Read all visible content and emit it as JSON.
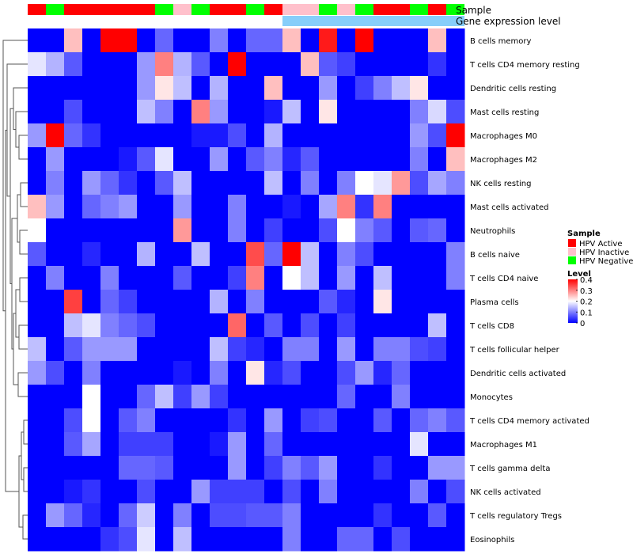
{
  "chart_data": {
    "type": "heatmap",
    "title": "",
    "annotation_tracks": [
      {
        "name": "Sample",
        "values": [
          "HPV Active",
          "HPV Negative",
          "HPV Active",
          "HPV Active",
          "HPV Active",
          "HPV Active",
          "HPV Active",
          "HPV Negative",
          "HPV Inactive",
          "HPV Negative",
          "HPV Active",
          "HPV Active",
          "HPV Negative",
          "HPV Active",
          "HPV Inactive",
          "HPV Inactive",
          "HPV Negative",
          "HPV Inactive",
          "HPV Negative",
          "HPV Active",
          "HPV Active",
          "HPV Negative",
          "HPV Active",
          "HPV Negative"
        ]
      },
      {
        "name": "Gene expression level",
        "values": [
          "low",
          "low",
          "low",
          "low",
          "low",
          "low",
          "low",
          "low",
          "low",
          "low",
          "low",
          "low",
          "low",
          "low",
          "high",
          "high",
          "high",
          "high",
          "high",
          "high",
          "high",
          "high",
          "high",
          "high"
        ]
      }
    ],
    "rows": [
      "B cells memory",
      "T cells CD4 memory resting",
      "Dendritic cells resting",
      "Mast cells resting",
      "Macrophages M0",
      "Macrophages M2",
      "NK cells resting",
      "Mast cells activated",
      "Neutrophils",
      "B cells naive",
      "T cells CD4 naive",
      "Plasma cells",
      "T cells CD8",
      "T cells follicular helper",
      "Dendritic cells activated",
      "Monocytes",
      "T cells CD4 memory activated",
      "Macrophages M1",
      "T cells gamma delta",
      "NK cells activated",
      "T cells regulatory  Tregs",
      "Eosinophils"
    ],
    "values": [
      [
        0,
        0,
        0.25,
        0,
        0.4,
        0.4,
        0,
        0.08,
        0,
        0,
        0.1,
        0,
        0.08,
        0.08,
        0.25,
        0,
        0.38,
        0,
        0.4,
        0,
        0,
        0,
        0.25,
        0
      ],
      [
        0.18,
        0.14,
        0.07,
        0,
        0,
        0,
        0.12,
        0.3,
        0.14,
        0.07,
        0,
        0.4,
        0,
        0,
        0,
        0.25,
        0.07,
        0.05,
        0,
        0,
        0,
        0,
        0.04,
        0
      ],
      [
        0,
        0,
        0,
        0,
        0,
        0,
        0.12,
        0.22,
        0.15,
        0,
        0.14,
        0,
        0,
        0.25,
        0,
        0,
        0.12,
        0,
        0.05,
        0.1,
        0.15,
        0.22,
        0,
        0
      ],
      [
        0,
        0,
        0.06,
        0,
        0,
        0,
        0.15,
        0.1,
        0,
        0.3,
        0.12,
        0,
        0,
        0.02,
        0.15,
        0,
        0.22,
        0,
        0,
        0,
        0,
        0.1,
        0.17,
        0.06
      ],
      [
        0.12,
        0.4,
        0.08,
        0.04,
        0,
        0,
        0,
        0,
        0,
        0.02,
        0.02,
        0.06,
        0,
        0.14,
        0,
        0,
        0,
        0,
        0,
        0,
        0,
        0.12,
        0.06,
        0.4
      ],
      [
        0,
        0.12,
        0,
        0,
        0,
        0.02,
        0.07,
        0.18,
        0,
        0,
        0.12,
        0,
        0.07,
        0.1,
        0.03,
        0.07,
        0,
        0,
        0,
        0,
        0,
        0.1,
        0,
        0.25
      ],
      [
        0,
        0.1,
        0,
        0.12,
        0.08,
        0.04,
        0,
        0.07,
        0.15,
        0,
        0,
        0,
        0,
        0.15,
        0,
        0.1,
        0,
        0.1,
        0.2,
        0.18,
        0.28,
        0.06,
        0.13,
        0.1
      ],
      [
        0.25,
        0.12,
        0,
        0.08,
        0.1,
        0.12,
        0,
        0,
        0.12,
        0,
        0,
        0.1,
        0,
        0,
        0.02,
        0,
        0.13,
        0.3,
        0.04,
        0.3,
        0,
        0,
        0,
        0
      ],
      [
        0.2,
        0,
        0,
        0,
        0,
        0,
        0,
        0,
        0.28,
        0,
        0,
        0.1,
        0,
        0.05,
        0,
        0,
        0.06,
        0.2,
        0.1,
        0.07,
        0,
        0.07,
        0.08,
        0
      ],
      [
        0.07,
        0,
        0,
        0.03,
        0,
        0,
        0.14,
        0,
        0,
        0.15,
        0,
        0,
        0.34,
        0.08,
        0.4,
        0.15,
        0,
        0.1,
        0.06,
        0,
        0,
        0,
        0,
        0.1
      ],
      [
        0,
        0.1,
        0,
        0,
        0.1,
        0,
        0,
        0,
        0.07,
        0,
        0,
        0.05,
        0.3,
        0,
        0.2,
        0.15,
        0,
        0.12,
        0,
        0.15,
        0,
        0,
        0,
        0.1
      ],
      [
        0,
        0,
        0.35,
        0,
        0.08,
        0.05,
        0,
        0,
        0,
        0,
        0.14,
        0,
        0.1,
        0,
        0,
        0,
        0.07,
        0.03,
        0,
        0.22,
        0,
        0,
        0,
        0
      ],
      [
        0,
        0,
        0.15,
        0.18,
        0.1,
        0.08,
        0.06,
        0,
        0,
        0,
        0,
        0.32,
        0,
        0.07,
        0,
        0.06,
        0,
        0.05,
        0,
        0,
        0,
        0,
        0.15,
        0
      ],
      [
        0.15,
        0,
        0.07,
        0.12,
        0.12,
        0.12,
        0,
        0,
        0,
        0,
        0.15,
        0.05,
        0.03,
        0,
        0.1,
        0.1,
        0,
        0.12,
        0,
        0.1,
        0.1,
        0.06,
        0.05,
        0
      ],
      [
        0.12,
        0.06,
        0,
        0.1,
        0,
        0,
        0,
        0,
        0.02,
        0,
        0.1,
        0,
        0.22,
        0.03,
        0.06,
        0,
        0,
        0.06,
        0.12,
        0.03,
        0.08,
        0,
        0,
        0
      ],
      [
        0,
        0,
        0,
        0.2,
        0,
        0,
        0.08,
        0.15,
        0.05,
        0.12,
        0.05,
        0,
        0,
        0,
        0,
        0,
        0,
        0.08,
        0,
        0,
        0.1,
        0,
        0,
        0
      ],
      [
        0,
        0,
        0.06,
        0.2,
        0,
        0.07,
        0.1,
        0,
        0,
        0,
        0,
        0.04,
        0,
        0.12,
        0,
        0.05,
        0.06,
        0,
        0,
        0.07,
        0,
        0.08,
        0.1,
        0.07
      ],
      [
        0,
        0,
        0.07,
        0.13,
        0,
        0.05,
        0.05,
        0.05,
        0,
        0,
        0.02,
        0.12,
        0,
        0.08,
        0,
        0,
        0,
        0,
        0,
        0,
        0,
        0.18,
        0,
        0
      ],
      [
        0,
        0,
        0,
        0,
        0,
        0.08,
        0.08,
        0.07,
        0,
        0,
        0,
        0.12,
        0,
        0.05,
        0.1,
        0.07,
        0.12,
        0,
        0,
        0.04,
        0,
        0,
        0.12,
        0.12
      ],
      [
        0,
        0,
        0.02,
        0.04,
        0,
        0,
        0.06,
        0,
        0,
        0.12,
        0.05,
        0.05,
        0.05,
        0,
        0.06,
        0,
        0.1,
        0,
        0,
        0,
        0,
        0.1,
        0,
        0.06
      ],
      [
        0,
        0.12,
        0.08,
        0.03,
        0,
        0.08,
        0.16,
        0,
        0.1,
        0,
        0.06,
        0.06,
        0.07,
        0.07,
        0.1,
        0,
        0,
        0,
        0,
        0.04,
        0,
        0,
        0.07,
        0
      ],
      [
        0,
        0,
        0,
        0,
        0.04,
        0.06,
        0.18,
        0,
        0.15,
        0,
        0,
        0,
        0,
        0,
        0.1,
        0,
        0,
        0.08,
        0.08,
        0,
        0.06,
        0,
        0,
        0
      ]
    ],
    "legend": {
      "sample_title": "Sample",
      "sample_entries": [
        {
          "label": "HPV Active",
          "color": "#ff0000"
        },
        {
          "label": "HPV Inactive",
          "color": "#ffc0cb"
        },
        {
          "label": "HPV Negative",
          "color": "#00ff00"
        }
      ],
      "level_title": "Level",
      "level_ticks": [
        "0.4",
        "0.3",
        "0.2",
        "0.1",
        "0"
      ],
      "position": "right"
    },
    "color_scale": {
      "min": 0,
      "mid": 0.2,
      "max": 0.4,
      "low": "#0000ff",
      "mid_color": "#ffffff",
      "high": "#ff0000"
    },
    "expression_colors": {
      "low": "#ffffff",
      "high": "#87cefa"
    }
  }
}
